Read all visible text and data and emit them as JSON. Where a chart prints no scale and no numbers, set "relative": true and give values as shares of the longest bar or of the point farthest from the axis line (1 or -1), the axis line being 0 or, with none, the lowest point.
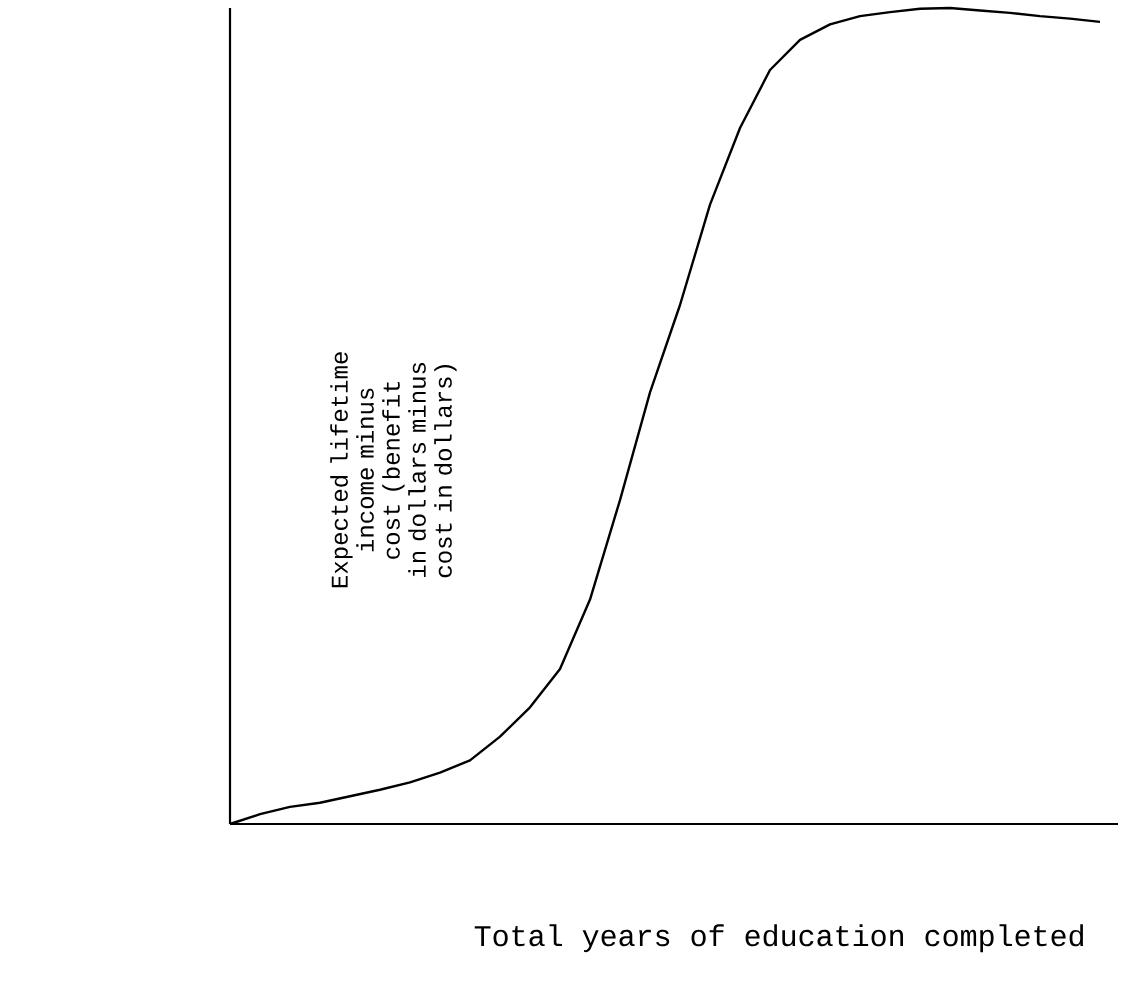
{
  "chart_data": {
    "type": "line",
    "relative": true,
    "color": "#000000",
    "marker": "none",
    "line_style": "solid",
    "xlabel": "Total years of education completed",
    "ylabel": "Expected lifetime income minus cost (benefit in dollars minus cost in dollars)",
    "categories": [
      null,
      null,
      null,
      null,
      null,
      null,
      null,
      null,
      null,
      null,
      null,
      null,
      null,
      null,
      null,
      null,
      null,
      null,
      null,
      null,
      null,
      null,
      null,
      null,
      null,
      null,
      null,
      null,
      null,
      null
    ],
    "values": [
      0,
      0.012,
      0.021,
      0.026,
      0.034,
      0.042,
      0.051,
      0.063,
      0.078,
      0.107,
      0.143,
      0.19,
      0.275,
      0.397,
      0.529,
      0.636,
      0.759,
      0.853,
      0.924,
      0.961,
      0.98,
      0.99,
      0.995,
      0.999,
      1.0,
      0.997,
      0.994,
      0.99,
      0.987,
      0.983
    ]
  }
}
